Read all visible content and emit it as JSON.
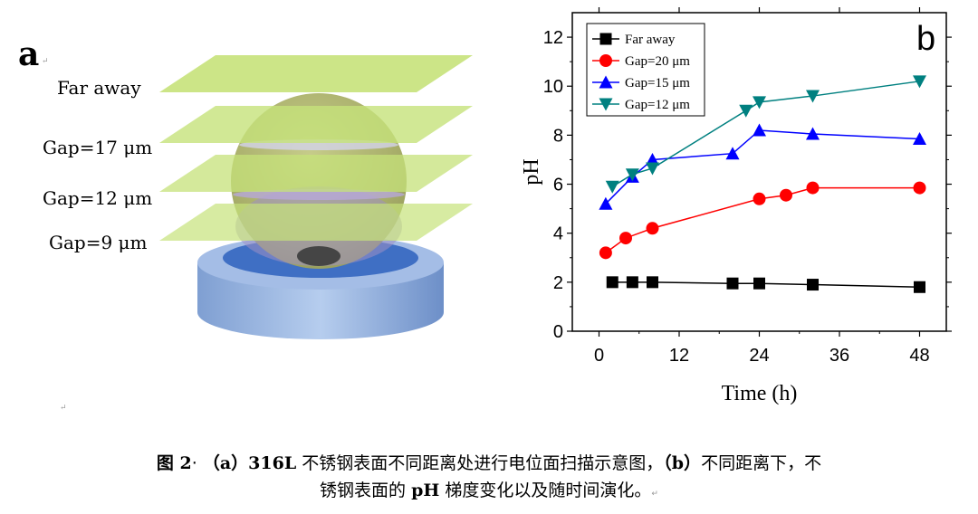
{
  "figure": {
    "panel_a": {
      "label": "a",
      "layers": [
        "Far away",
        "Gap=17 μm",
        "Gap=12 μm",
        "Gap=9 μm"
      ]
    },
    "panel_b": {
      "label": "b"
    },
    "caption": {
      "fig_num": "图 2",
      "part_a_label": "（a）",
      "part_a_alloy": "316L",
      "part_a_text": "不锈钢表面不同距离处进行电位面扫描示意图，",
      "part_b_label": "（b）",
      "part_b_text": "不同距离下，不",
      "line2_pre": "锈钢表面的",
      "line2_ph": "pH",
      "line2_post": "梯度变化以及随时间演化。"
    }
  },
  "chart_data": {
    "type": "line",
    "title": "",
    "xlabel": "Time (h)",
    "ylabel": "pH",
    "xlim": [
      -4,
      52
    ],
    "ylim": [
      0,
      13
    ],
    "xticks": [
      0,
      12,
      24,
      36,
      48
    ],
    "yticks": [
      0,
      2,
      4,
      6,
      8,
      10,
      12
    ],
    "legend_position": "top-left",
    "series": [
      {
        "name": "Far away",
        "marker": "square",
        "color": "#000000",
        "x": [
          2,
          5,
          8,
          20,
          24,
          32,
          48
        ],
        "y": [
          2.0,
          2.0,
          2.0,
          1.95,
          1.95,
          1.9,
          1.8
        ]
      },
      {
        "name": "Gap=20 μm",
        "marker": "circle",
        "color": "#ff0000",
        "x": [
          1,
          4,
          8,
          24,
          28,
          32,
          48
        ],
        "y": [
          3.2,
          3.8,
          4.2,
          5.4,
          5.55,
          5.85,
          5.85
        ]
      },
      {
        "name": "Gap=15 μm",
        "marker": "triangle-up",
        "color": "#0000ff",
        "x": [
          1,
          5,
          8,
          20,
          24,
          32,
          48
        ],
        "y": [
          5.2,
          6.3,
          7.0,
          7.25,
          8.2,
          8.05,
          7.85
        ]
      },
      {
        "name": "Gap=12 μm",
        "marker": "triangle-down",
        "color": "#008080",
        "x": [
          2,
          5,
          8,
          22,
          24,
          32,
          48
        ],
        "y": [
          5.9,
          6.4,
          6.65,
          9.0,
          9.35,
          9.6,
          10.2
        ]
      }
    ]
  }
}
